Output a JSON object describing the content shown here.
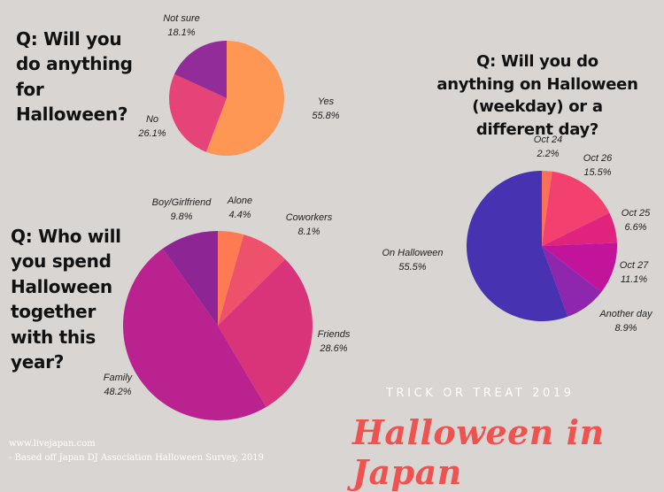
{
  "chart_data": [
    {
      "type": "pie",
      "title": "Q: Will you do anything for Halloween?",
      "slices": [
        {
          "label": "Yes",
          "value": 55.8,
          "value_text": "55.8%",
          "color": "#fe9654"
        },
        {
          "label": "No",
          "value": 26.1,
          "value_text": "26.1%",
          "color": "#e64378"
        },
        {
          "label": "Not sure",
          "value": 18.1,
          "value_text": "18.1%",
          "color": "#912c99"
        }
      ]
    },
    {
      "type": "pie",
      "title": "Q: Will you do anything on Halloween (weekday) or a different day?",
      "slices": [
        {
          "label": "Oct 24",
          "value": 2.2,
          "value_text": "2.2%",
          "color": "#fe6f58"
        },
        {
          "label": "Oct 26",
          "value": 15.5,
          "value_text": "15.5%",
          "color": "#f2416f"
        },
        {
          "label": "Oct 25",
          "value": 6.6,
          "value_text": "6.6%",
          "color": "#e0247e"
        },
        {
          "label": "Oct 27",
          "value": 11.1,
          "value_text": "11.1%",
          "color": "#c2139b"
        },
        {
          "label": "Another day",
          "value": 8.9,
          "value_text": "8.9%",
          "color": "#8e26ae"
        },
        {
          "label": "On Halloween",
          "value": 55.5,
          "value_text": "55.5%",
          "color": "#4732b2"
        }
      ]
    },
    {
      "type": "pie",
      "title": "Q: Who will you spend Halloween together with this year?",
      "slices": [
        {
          "label": "Alone",
          "value": 4.4,
          "value_text": "4.4%",
          "color": "#fd7a53"
        },
        {
          "label": "Coworkers",
          "value": 8.1,
          "value_text": "8.1%",
          "color": "#ed516c"
        },
        {
          "label": "Friends",
          "value": 28.6,
          "value_text": "28.6%",
          "color": "#d93479"
        },
        {
          "label": "Family",
          "value": 48.2,
          "value_text": "48.2%",
          "color": "#ba2290"
        },
        {
          "label": "Boy/Girlfriend",
          "value": 9.8,
          "value_text": "9.8%",
          "color": "#8e2594"
        }
      ]
    }
  ],
  "footer": {
    "tagline": "TRICK OR TREAT 2019",
    "headline": "Halloween in Japan",
    "site": "www.livejapan.com",
    "source": "- Based off Japan DJ Association Halloween Survey, 2019"
  }
}
